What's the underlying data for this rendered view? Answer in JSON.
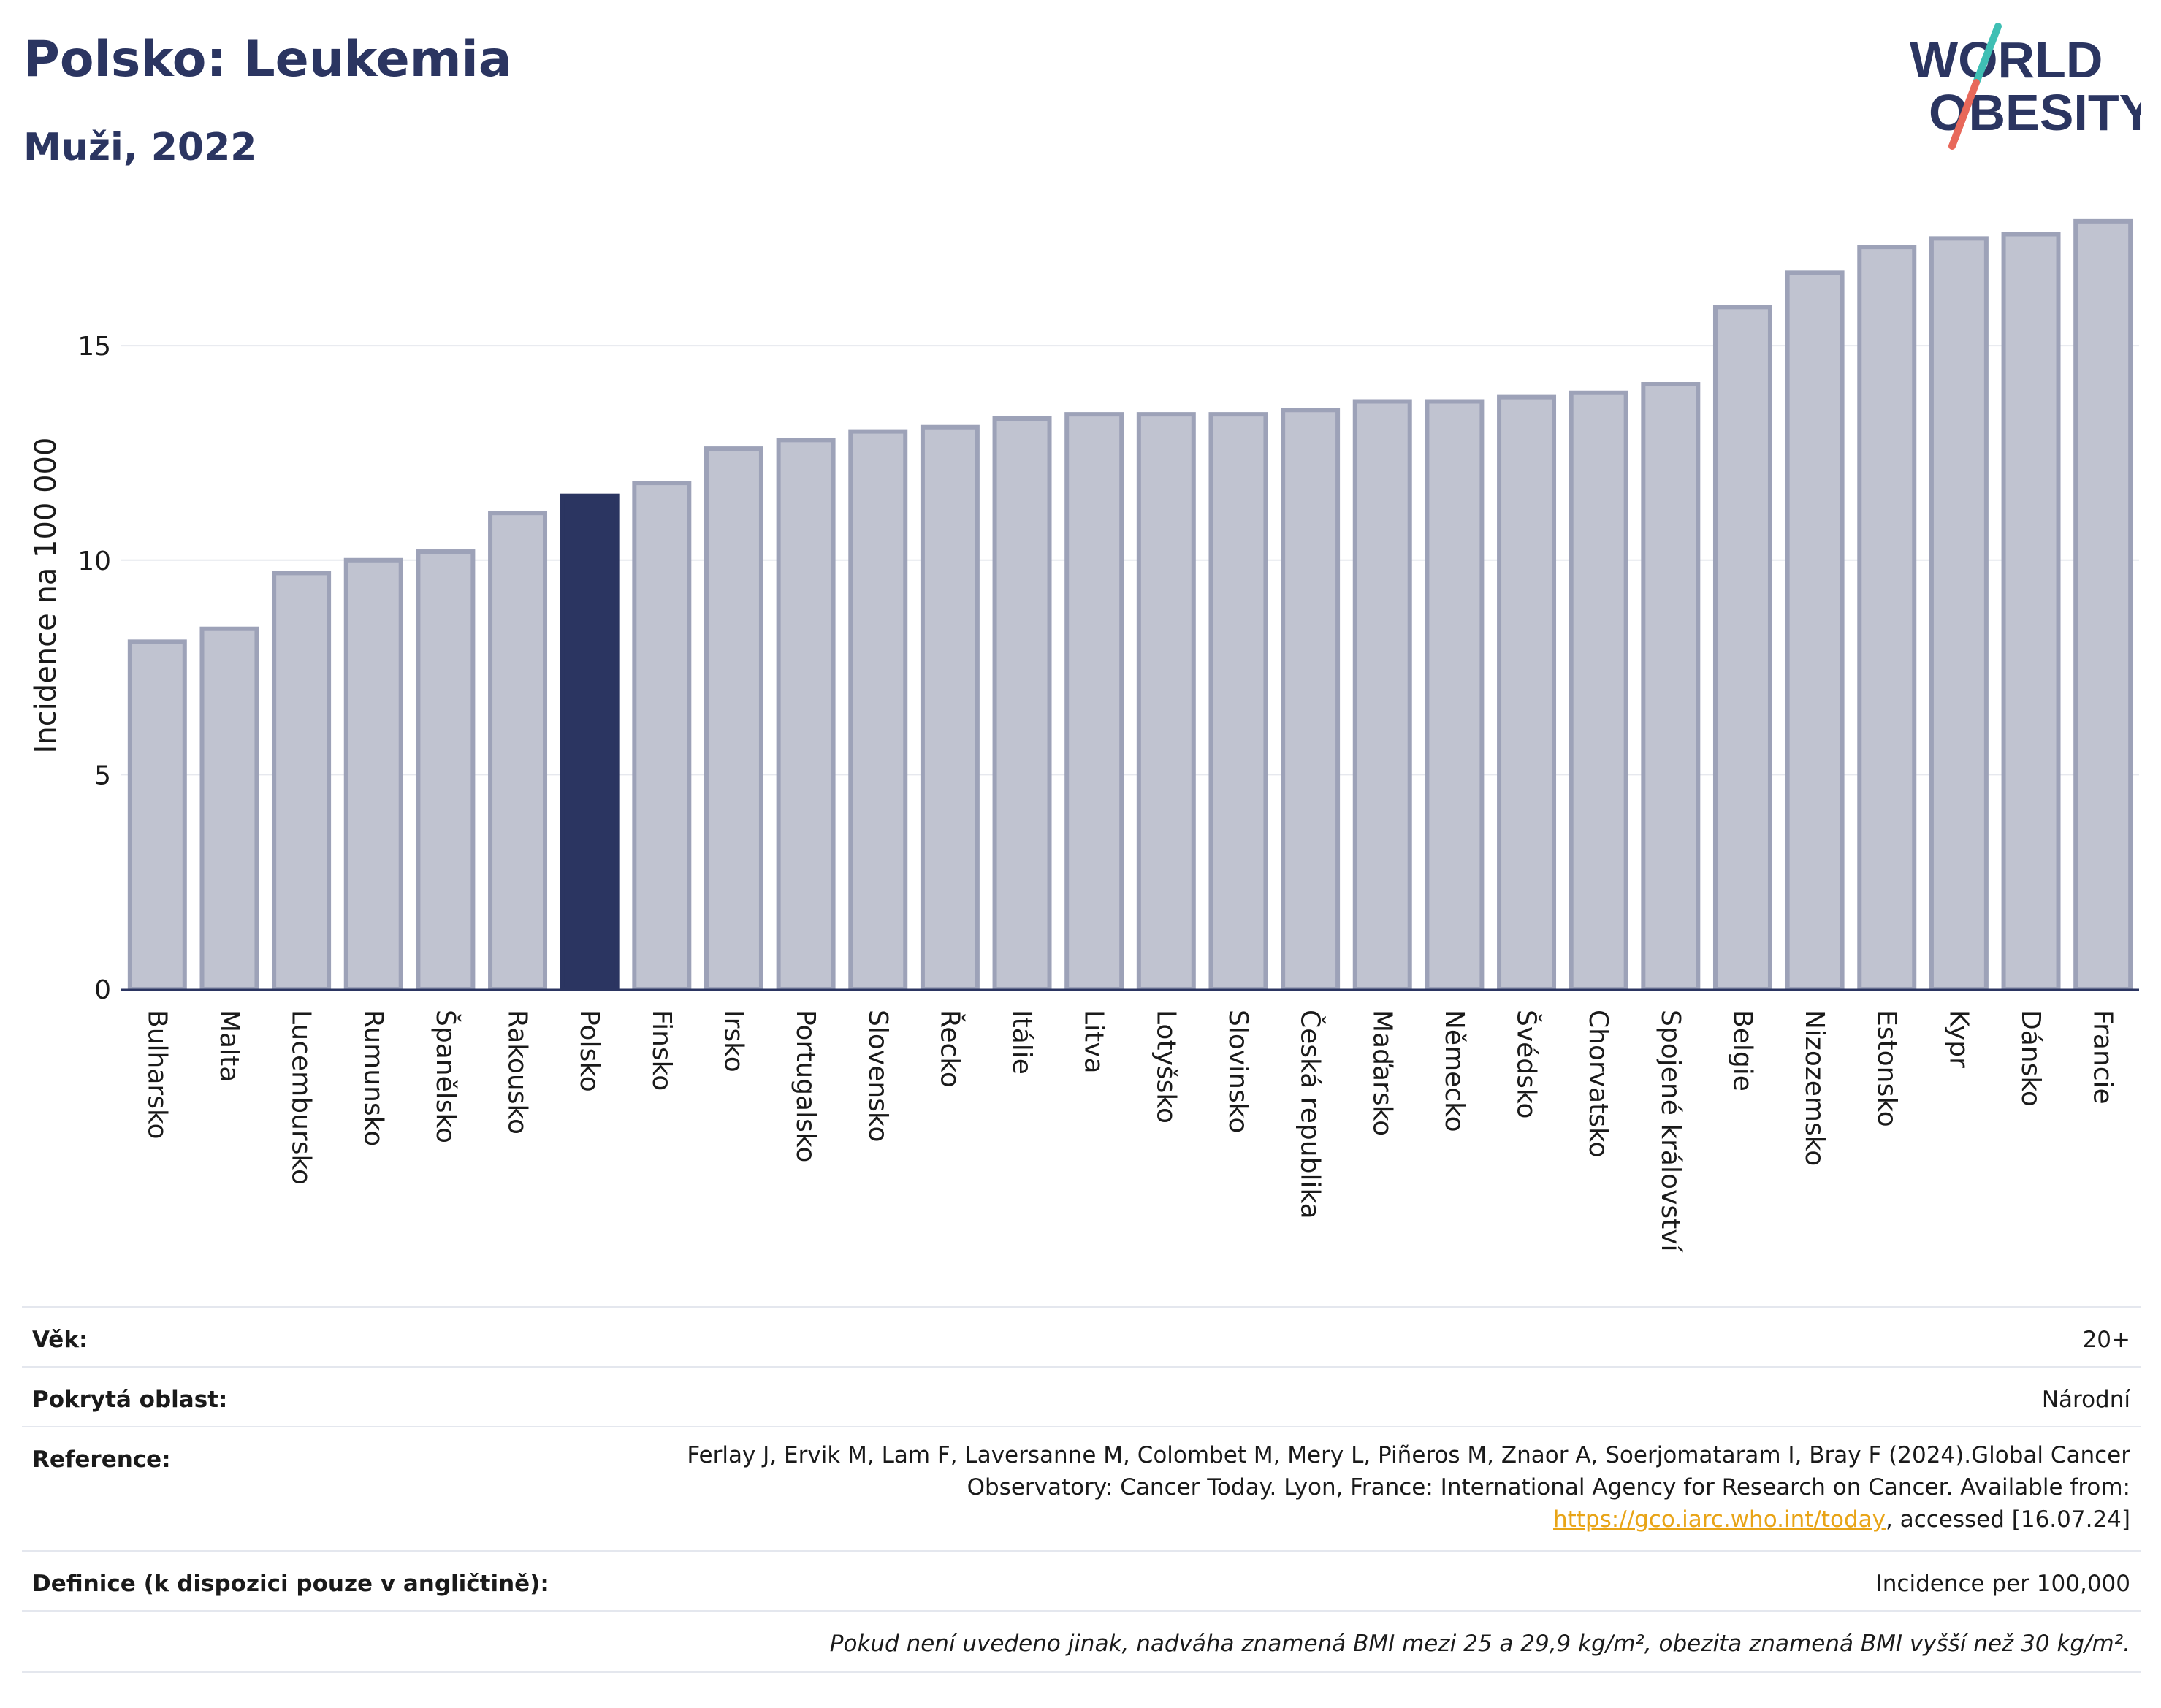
{
  "header": {
    "title": "Polsko: Leukemia",
    "subtitle": "Muži, 2022"
  },
  "logo": {
    "line1": "WORLD",
    "line2": "OBESITY",
    "colors": {
      "text": "#2b3561",
      "slash_top": "#3fbfb4",
      "slash_bottom": "#e8685a"
    }
  },
  "chart_data": {
    "type": "bar",
    "ylabel": "Incidence na 100 000",
    "xlabel": "",
    "ylim": [
      0,
      18
    ],
    "yticks": [
      0,
      5,
      10,
      15
    ],
    "grid": true,
    "highlight": "Polsko",
    "colors": {
      "bar": "#c0c3d0",
      "bar_edge": "#9da2b8",
      "highlight": "#2b3561"
    },
    "categories": [
      "Bulharsko",
      "Malta",
      "Lucembursko",
      "Rumunsko",
      "Španělsko",
      "Rakousko",
      "Polsko",
      "Finsko",
      "Irsko",
      "Portugalsko",
      "Slovensko",
      "Řecko",
      "Itálie",
      "Litva",
      "Lotyšsko",
      "Slovinsko",
      "Česká republika",
      "Maďarsko",
      "Německo",
      "Švédsko",
      "Chorvatsko",
      "Spojené království",
      "Belgie",
      "Nizozemsko",
      "Estonsko",
      "Kypr",
      "Dánsko",
      "Francie"
    ],
    "values": [
      8.1,
      8.4,
      9.7,
      10.0,
      10.2,
      11.1,
      11.5,
      11.8,
      12.6,
      12.8,
      13.0,
      13.1,
      13.3,
      13.4,
      13.4,
      13.4,
      13.5,
      13.7,
      13.7,
      13.8,
      13.9,
      14.1,
      15.9,
      16.7,
      17.3,
      17.5,
      17.6,
      17.9
    ]
  },
  "info": {
    "age_label": "Věk:",
    "age_value": "20+",
    "area_label": "Pokrytá oblast:",
    "area_value": "Národní",
    "ref_label": "Reference:",
    "ref_text_1": "Ferlay J, Ervik M, Lam F, Laversanne M, Colombet M, Mery L, Piñeros M, Znaor A, Soerjomataram I, Bray F (2024).Global Cancer Observatory: Cancer Today. Lyon, France: International Agency for Research on Cancer. Available from: ",
    "ref_link": "https://gco.iarc.who.int/today",
    "ref_text_2": ", accessed [16.07.24]",
    "def_label": "Definice (k dispozici pouze v angličtině):",
    "def_value": "Incidence per 100,000",
    "note": "Pokud není uvedeno jinak, nadváha znamená BMI mezi 25 a 29,9 kg/m², obezita znamená BMI vyšší než 30 kg/m²."
  }
}
